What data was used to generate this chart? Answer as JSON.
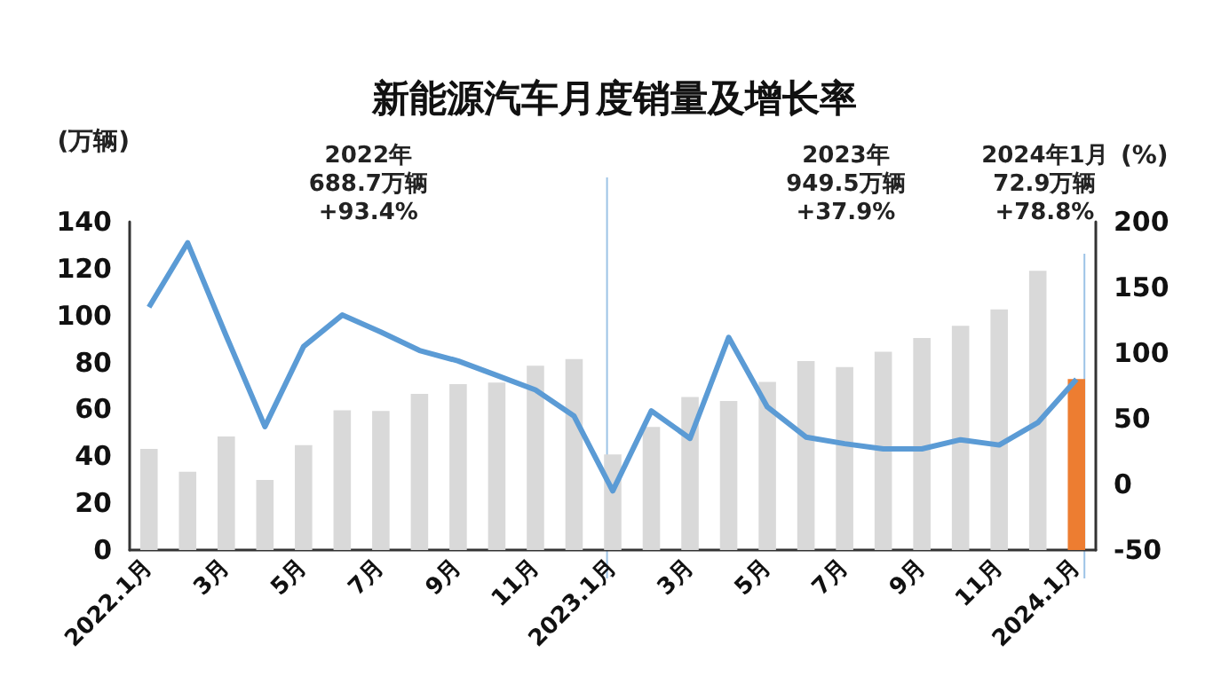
{
  "chart_data": {
    "type": "bar",
    "title": "新能源汽车月度销量及增长率",
    "ylabel": "(万辆)",
    "y2label": "(%)",
    "categories": [
      "2022.1月",
      null,
      "3月",
      null,
      "5月",
      null,
      "7月",
      null,
      "9月",
      null,
      "11月",
      null,
      "2023.1月",
      null,
      "3月",
      null,
      "5月",
      null,
      "7月",
      null,
      "9月",
      null,
      "11月",
      null,
      "2024.1月"
    ],
    "series": [
      {
        "colors": [
          "#d9d9d9",
          "#d9d9d9",
          "#d9d9d9",
          "#d9d9d9",
          "#d9d9d9",
          "#d9d9d9",
          "#d9d9d9",
          "#d9d9d9",
          "#d9d9d9",
          "#d9d9d9",
          "#d9d9d9",
          "#d9d9d9",
          "#d9d9d9",
          "#d9d9d9",
          "#d9d9d9",
          "#d9d9d9",
          "#d9d9d9",
          "#d9d9d9",
          "#d9d9d9",
          "#d9d9d9",
          "#d9d9d9",
          "#d9d9d9",
          "#d9d9d9",
          "#d9d9d9",
          "#ed7d31"
        ],
        "values": [
          43.1,
          33.4,
          48.4,
          29.9,
          44.7,
          59.6,
          59.3,
          66.6,
          70.8,
          71.4,
          78.6,
          81.4,
          40.8,
          52.5,
          65.3,
          63.6,
          71.7,
          80.6,
          78.0,
          84.6,
          90.4,
          95.6,
          102.6,
          119.1,
          72.9
        ]
      },
      {
        "type": "line",
        "axis": "y2",
        "color": "#5b9bd5",
        "marker": "none",
        "values": [
          135,
          184,
          113,
          44,
          105,
          129,
          116,
          102,
          94,
          83,
          72,
          52,
          -5,
          56,
          35,
          112,
          59,
          36,
          31,
          27,
          27,
          34,
          30,
          47,
          80
        ]
      }
    ],
    "ylim": [
      0,
      140
    ],
    "yticks": [
      0,
      20,
      40,
      60,
      80,
      100,
      120,
      140
    ],
    "y2lim": [
      -50,
      200
    ],
    "y2ticks": [
      -50,
      0,
      50,
      100,
      150,
      200
    ],
    "ref_lines": [
      {
        "axis": "x",
        "value": "2023.1月",
        "color": "#9dc3e6"
      },
      {
        "axis": "x",
        "value": "2024.1月",
        "color": "#9dc3e6"
      }
    ],
    "annotations": [
      "2022年\n688.7万辆\n+93.4%",
      "2023年\n949.5万辆\n+37.9%",
      "2024年1月\n72.9万辆\n+78.8%"
    ],
    "grid": false
  }
}
